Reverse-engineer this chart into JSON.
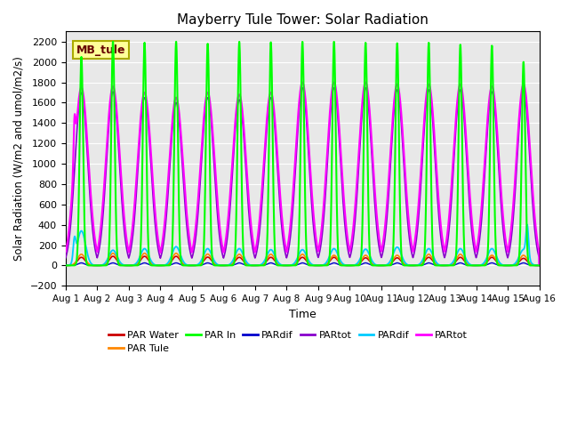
{
  "title": "Mayberry Tule Tower: Solar Radiation",
  "xlabel": "Time",
  "ylabel": "Solar Radiation (W/m2 and umol/m2/s)",
  "ylim": [
    -200,
    2300
  ],
  "xlim": [
    0,
    15
  ],
  "yticks": [
    -200,
    0,
    200,
    400,
    600,
    800,
    1000,
    1200,
    1400,
    1600,
    1800,
    2000,
    2200
  ],
  "xtick_labels": [
    "Aug 1",
    "Aug 2",
    "Aug 3",
    "Aug 4",
    "Aug 5",
    "Aug 6",
    "Aug 7",
    "Aug 8",
    "Aug 9",
    "Aug 10",
    "Aug 11",
    "Aug 12",
    "Aug 13",
    "Aug 14",
    "Aug 15",
    "Aug 16"
  ],
  "bg_color": "#e8e8e8",
  "legend_label": "MB_tule",
  "par_in_peaks": [
    2050,
    2200,
    2190,
    2200,
    2180,
    2200,
    2195,
    2200,
    2200,
    2190,
    2185,
    2190,
    2170,
    2160,
    2000
  ],
  "par_mag_peaks": [
    1750,
    1760,
    1700,
    1650,
    1700,
    1680,
    1700,
    1800,
    1800,
    1800,
    1780,
    1780,
    1780,
    1760,
    1780
  ],
  "par_cyan_peaks": [
    340,
    150,
    165,
    185,
    165,
    165,
    155,
    155,
    165,
    160,
    180,
    165,
    165,
    165,
    155
  ],
  "par_water_peaks": [
    80,
    90,
    90,
    90,
    82,
    80,
    80,
    80,
    80,
    75,
    75,
    80,
    80,
    80,
    70
  ],
  "par_tule_peaks": [
    110,
    120,
    120,
    120,
    112,
    110,
    110,
    110,
    100,
    100,
    100,
    110,
    110,
    100,
    100
  ],
  "series": {
    "PAR_Water": {
      "color": "#cc0000",
      "label": "PAR Water"
    },
    "PAR_Tule": {
      "color": "#ff8800",
      "label": "PAR Tule"
    },
    "PAR_In": {
      "color": "#00ff00",
      "label": "PAR In"
    },
    "PARdif_blue": {
      "color": "#0000cc",
      "label": "PARdif"
    },
    "PARtot_purple": {
      "color": "#8800cc",
      "label": "PARtot"
    },
    "PARdif_cyan": {
      "color": "#00ccff",
      "label": "PARdif"
    },
    "PARtot_magenta": {
      "color": "#ff00ff",
      "label": "PARtot"
    }
  }
}
